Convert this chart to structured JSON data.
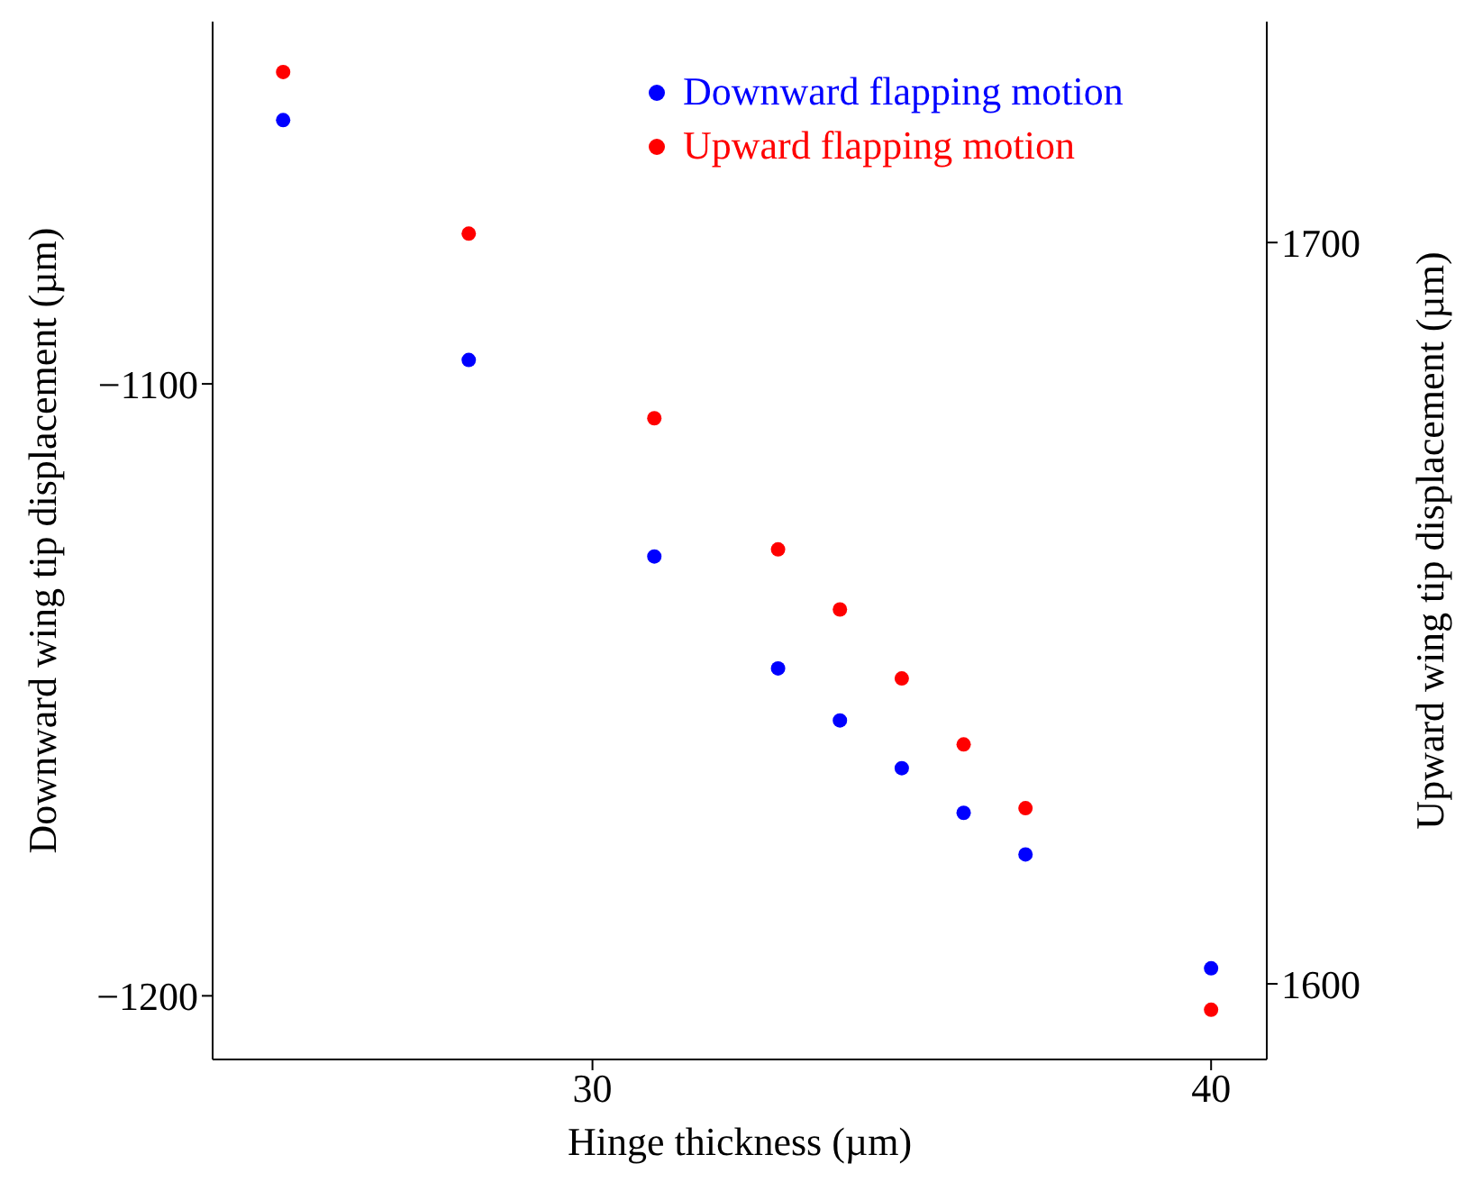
{
  "chart_data": {
    "type": "scatter",
    "xlabel": "Hinge thickness (µm)",
    "ylabel": "Downward wing tip displacement (µm)",
    "y2label": "Upward wing tip displacement (µm)",
    "x": [
      25,
      28,
      31,
      33,
      34,
      35,
      36,
      37,
      40
    ],
    "series": [
      {
        "name": "Downward flapping motion",
        "color": "#0000ff",
        "values": [
          -1056.9,
          -1096.1,
          -1128.2,
          -1146.5,
          -1155.0,
          -1162.8,
          -1170.1,
          -1176.9,
          -1195.5
        ]
      },
      {
        "name": "Upward flapping motion",
        "color": "#ff0000",
        "axis": "y2",
        "values": [
          1723.0,
          1701.2,
          1676.3,
          1658.6,
          1650.5,
          1641.2,
          1632.3,
          1623.7,
          1596.5
        ]
      }
    ],
    "xlim": [
      23.86,
      40.9
    ],
    "xticks": [
      30,
      40
    ],
    "ylim": [
      -1210.4,
      -1040.8
    ],
    "yticks": [
      -1200,
      -1100
    ],
    "y2lim": [
      1589.8,
      1729.8
    ],
    "y2ticks": [
      1600,
      1700
    ],
    "grid": false,
    "legend": "top right",
    "marker": "circle"
  }
}
